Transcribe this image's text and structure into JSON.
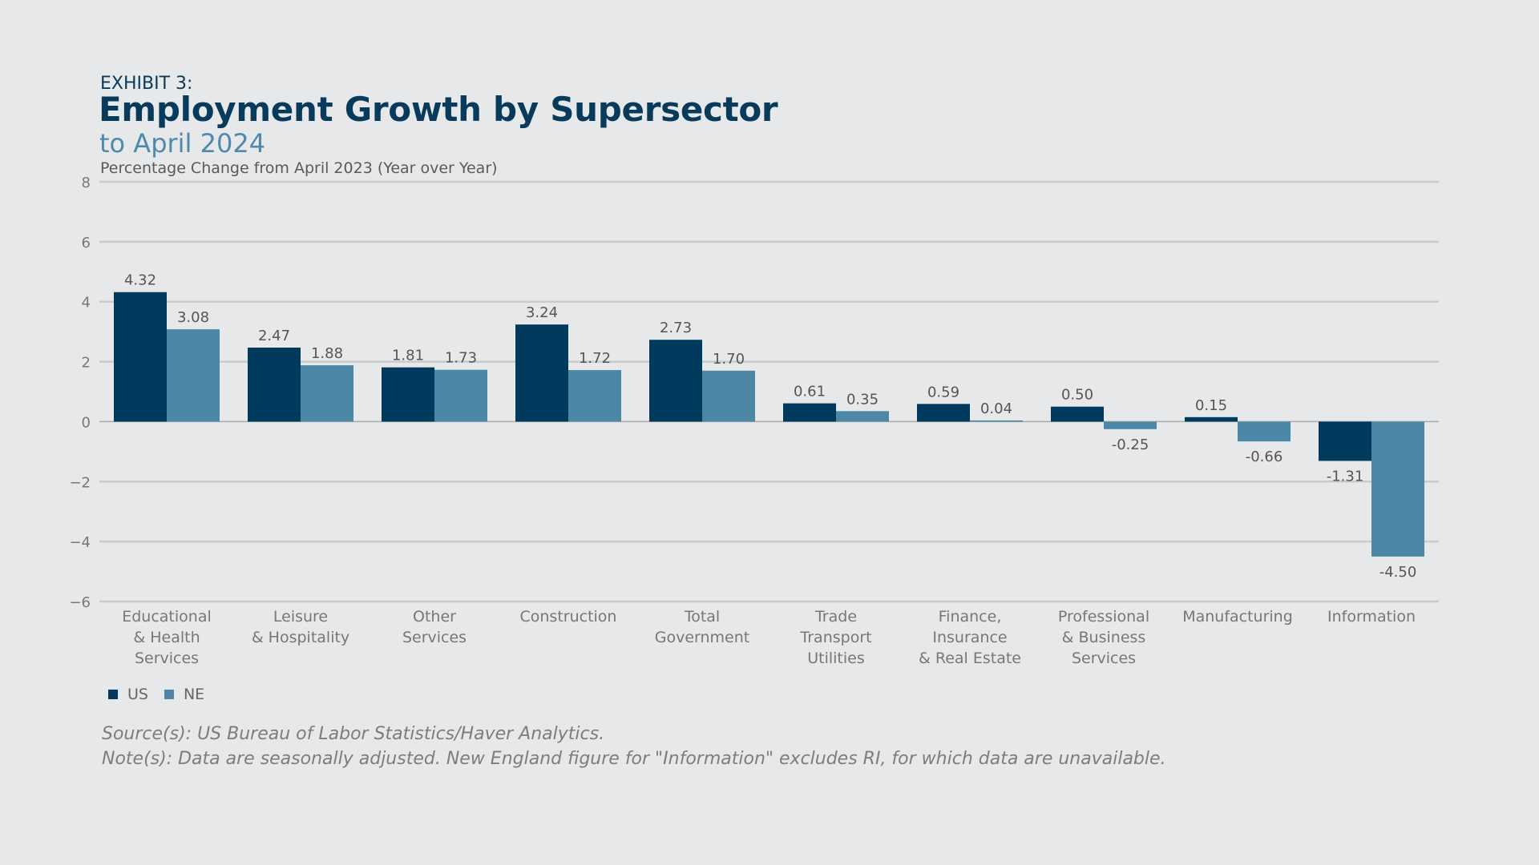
{
  "header": {
    "exhibit": "EXHIBIT 3:",
    "title": "Employment Growth by Supersector",
    "subtitle": "to April 2024"
  },
  "footer": {
    "source": "Source(s): US Bureau of Labor Statistics/Haver Analytics.",
    "note": "Note(s): Data are seasonally adjusted. New England figure for \"Information\" excludes RI, for which data are unavailable."
  },
  "colors": {
    "US": "#003a5d",
    "NE": "#4d87a6",
    "grid": "#c9cacc",
    "axis_text": "#777777",
    "label_text": "#555555"
  },
  "chart_data": {
    "type": "bar",
    "title": "Employment Growth by Supersector",
    "subtitle": "to April 2024",
    "ylabel": "Percentage Change from April 2023 (Year over Year)",
    "xlabel": "",
    "ylim": [
      -6,
      8
    ],
    "yticks": [
      "8",
      "6",
      "4",
      "2",
      "0",
      "−2",
      "−4",
      "−6"
    ],
    "ytick_values": [
      8,
      6,
      4,
      2,
      0,
      -2,
      -4,
      -6
    ],
    "grid": true,
    "legend": "bottom-left",
    "categories": [
      [
        "Educational",
        "& Health",
        "Services"
      ],
      [
        "Leisure",
        "& Hospitality"
      ],
      [
        "Other",
        "Services"
      ],
      [
        "Construction"
      ],
      [
        "Total",
        "Government"
      ],
      [
        "Trade",
        "Transport",
        "Utilities"
      ],
      [
        "Finance,",
        "Insurance",
        "& Real Estate"
      ],
      [
        "Professional",
        "& Business",
        "Services"
      ],
      [
        "Manufacturing"
      ],
      [
        "Information"
      ]
    ],
    "series": [
      {
        "name": "US",
        "values": [
          4.32,
          2.47,
          1.81,
          3.24,
          2.73,
          0.61,
          0.59,
          0.5,
          0.15,
          -1.31
        ],
        "labels": [
          "4.32",
          "2.47",
          "1.81",
          "3.24",
          "2.73",
          "0.61",
          "0.59",
          "0.50",
          "0.15",
          "-1.31"
        ]
      },
      {
        "name": "NE",
        "values": [
          3.08,
          1.88,
          1.73,
          1.72,
          1.7,
          0.35,
          0.04,
          -0.25,
          -0.66,
          -4.5
        ],
        "labels": [
          "3.08",
          "1.88",
          "1.73",
          "1.72",
          "1.70",
          "0.35",
          "0.04",
          "-0.25",
          "-0.66",
          "-4.50"
        ]
      }
    ]
  }
}
